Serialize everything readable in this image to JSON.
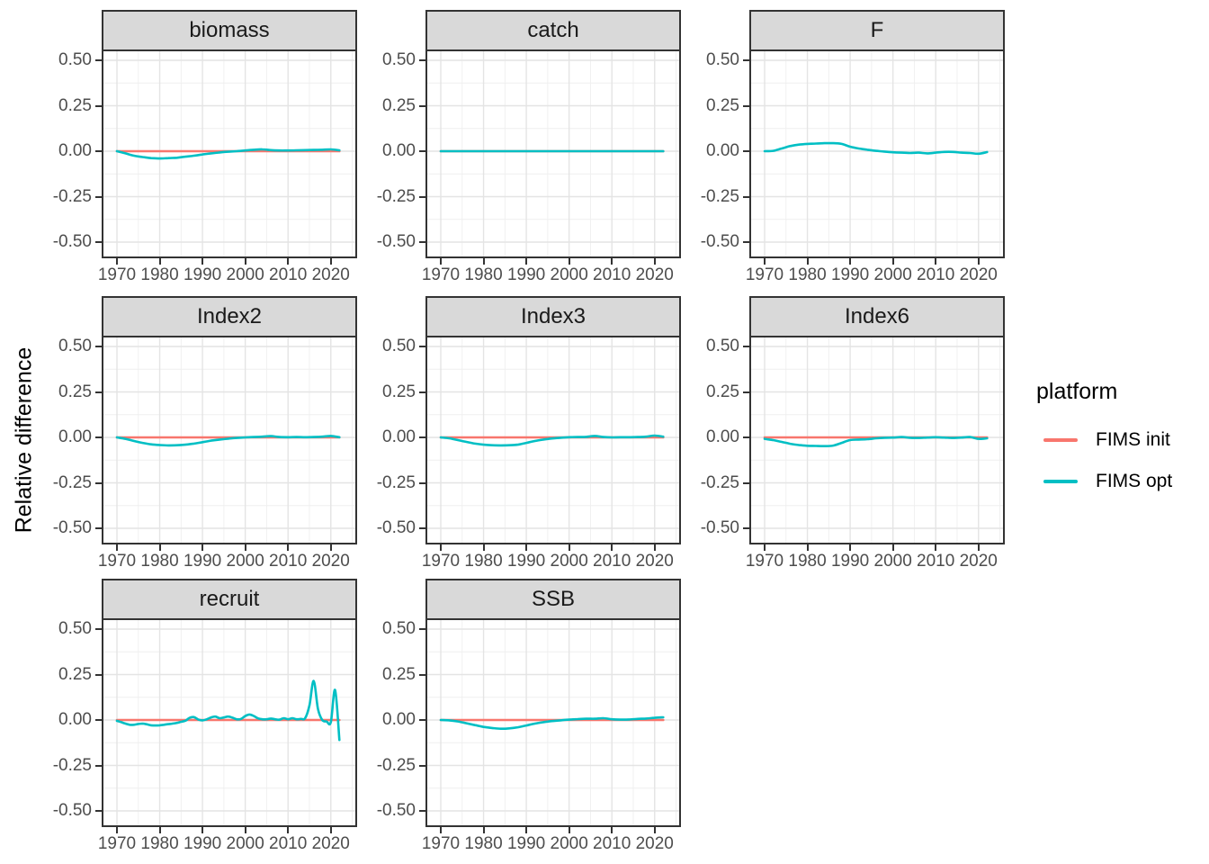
{
  "figure": {
    "y_axis_title": "Relative difference",
    "legend": {
      "title": "platform",
      "entries": [
        {
          "label": "FIMS init",
          "color": "#F8766D"
        },
        {
          "label": "FIMS opt",
          "color": "#00BFC4"
        }
      ]
    },
    "colors": {
      "init_line": "#F8766D",
      "opt_line": "#00BFC4",
      "strip_bg": "#D9D9D9",
      "panel_border": "#333333",
      "grid_major": "#E4E4E4",
      "grid_minor": "#EFEFEF",
      "tick_label": "#4D4D4D"
    }
  },
  "chart_data": {
    "type": "line",
    "title": "",
    "xlabel": "",
    "ylabel": "Relative difference",
    "grid": true,
    "legend_position": "right",
    "x_range": [
      1970,
      2022
    ],
    "ylim": [
      -0.55,
      0.565
    ],
    "x_tick_years": [
      1970,
      1980,
      1990,
      2000,
      2010,
      2020
    ],
    "x_tick_labels": [
      "1970",
      "1980",
      "1990",
      "2000",
      "2010",
      "2020"
    ],
    "x_minor_years": [
      1975,
      1985,
      1995,
      2005,
      2015,
      2025
    ],
    "y_tick_values": [
      0.5,
      0.25,
      0,
      -0.25,
      -0.5
    ],
    "y_tick_labels": [
      "0.50",
      "0.25",
      "0.00",
      "-0.25",
      "-0.50"
    ],
    "y_minor_values": [
      0.375,
      0.125,
      -0.125,
      -0.375
    ],
    "facets": [
      {
        "title": "biomass",
        "series": [
          {
            "name": "FIMS init",
            "color": "#F8766D",
            "x": [
              1970,
              2022
            ],
            "y": [
              0,
              0
            ]
          },
          {
            "name": "FIMS opt",
            "color": "#00BFC4",
            "x": [
              1970,
              1972,
              1974,
              1976,
              1978,
              1980,
              1982,
              1984,
              1986,
              1988,
              1990,
              1992,
              1994,
              1996,
              1998,
              2000,
              2002,
              2004,
              2006,
              2008,
              2010,
              2012,
              2014,
              2016,
              2018,
              2020,
              2022
            ],
            "y": [
              0.0,
              -0.012,
              -0.025,
              -0.032,
              -0.038,
              -0.04,
              -0.038,
              -0.036,
              -0.03,
              -0.025,
              -0.018,
              -0.012,
              -0.007,
              -0.003,
              0.0,
              0.004,
              0.008,
              0.01,
              0.006,
              0.004,
              0.004,
              0.005,
              0.006,
              0.007,
              0.008,
              0.01,
              0.005
            ]
          }
        ]
      },
      {
        "title": "catch",
        "series": [
          {
            "name": "FIMS init",
            "color": "#F8766D",
            "x": [
              1970,
              2022
            ],
            "y": [
              0,
              0
            ]
          },
          {
            "name": "FIMS opt",
            "color": "#00BFC4",
            "x": [
              1970,
              1972,
              1974,
              1976,
              1978,
              1980,
              1982,
              1984,
              1986,
              1988,
              1990,
              1992,
              1994,
              1996,
              1998,
              2000,
              2002,
              2004,
              2006,
              2008,
              2010,
              2012,
              2014,
              2016,
              2018,
              2020,
              2022
            ],
            "y": [
              0,
              0,
              0,
              0,
              0,
              0,
              0,
              0,
              0,
              0,
              0,
              0,
              0,
              0,
              0,
              0,
              0,
              0,
              0,
              0,
              0,
              0,
              0,
              0,
              0,
              0,
              0
            ]
          }
        ]
      },
      {
        "title": "F",
        "series": [
          {
            "name": "FIMS opt",
            "color": "#00BFC4",
            "x": [
              1970,
              1972,
              1974,
              1976,
              1978,
              1980,
              1982,
              1984,
              1986,
              1988,
              1990,
              1992,
              1994,
              1996,
              1998,
              2000,
              2002,
              2004,
              2006,
              2008,
              2010,
              2012,
              2014,
              2016,
              2018,
              2020,
              2022
            ],
            "y": [
              0.0,
              0.002,
              0.015,
              0.028,
              0.036,
              0.04,
              0.042,
              0.044,
              0.044,
              0.04,
              0.025,
              0.015,
              0.008,
              0.002,
              -0.002,
              -0.006,
              -0.008,
              -0.01,
              -0.008,
              -0.012,
              -0.008,
              -0.004,
              -0.004,
              -0.008,
              -0.01,
              -0.014,
              -0.005
            ]
          }
        ]
      },
      {
        "title": "Index2",
        "series": [
          {
            "name": "FIMS init",
            "color": "#F8766D",
            "x": [
              1970,
              2022
            ],
            "y": [
              0,
              0
            ]
          },
          {
            "name": "FIMS opt",
            "color": "#00BFC4",
            "x": [
              1970,
              1972,
              1974,
              1976,
              1978,
              1980,
              1982,
              1984,
              1986,
              1988,
              1990,
              1992,
              1994,
              1996,
              1998,
              2000,
              2002,
              2004,
              2006,
              2008,
              2010,
              2012,
              2014,
              2016,
              2018,
              2020,
              2022
            ],
            "y": [
              0.0,
              -0.008,
              -0.02,
              -0.03,
              -0.038,
              -0.042,
              -0.044,
              -0.043,
              -0.04,
              -0.034,
              -0.026,
              -0.018,
              -0.012,
              -0.007,
              -0.003,
              0.0,
              0.002,
              0.004,
              0.007,
              0.002,
              0.001,
              0.002,
              0.001,
              0.002,
              0.004,
              0.008,
              0.001
            ]
          }
        ]
      },
      {
        "title": "Index3",
        "series": [
          {
            "name": "FIMS init",
            "color": "#F8766D",
            "x": [
              1970,
              2022
            ],
            "y": [
              0,
              0
            ]
          },
          {
            "name": "FIMS opt",
            "color": "#00BFC4",
            "x": [
              1970,
              1972,
              1974,
              1976,
              1978,
              1980,
              1982,
              1984,
              1986,
              1988,
              1990,
              1992,
              1994,
              1996,
              1998,
              2000,
              2002,
              2004,
              2006,
              2008,
              2010,
              2012,
              2014,
              2016,
              2018,
              2020,
              2022
            ],
            "y": [
              0.0,
              -0.005,
              -0.015,
              -0.025,
              -0.034,
              -0.04,
              -0.043,
              -0.044,
              -0.043,
              -0.04,
              -0.03,
              -0.02,
              -0.012,
              -0.006,
              -0.002,
              0.001,
              0.002,
              0.003,
              0.008,
              0.002,
              0.0,
              0.001,
              0.001,
              0.002,
              0.004,
              0.01,
              0.004
            ]
          }
        ]
      },
      {
        "title": "Index6",
        "series": [
          {
            "name": "FIMS init",
            "color": "#F8766D",
            "x": [
              1970,
              2022
            ],
            "y": [
              0,
              0
            ]
          },
          {
            "name": "FIMS opt",
            "color": "#00BFC4",
            "x": [
              1970,
              1972,
              1974,
              1976,
              1978,
              1980,
              1982,
              1984,
              1986,
              1988,
              1990,
              1992,
              1994,
              1996,
              1998,
              2000,
              2002,
              2004,
              2006,
              2008,
              2010,
              2012,
              2014,
              2016,
              2018,
              2020,
              2022
            ],
            "y": [
              -0.008,
              -0.015,
              -0.025,
              -0.035,
              -0.042,
              -0.046,
              -0.047,
              -0.048,
              -0.045,
              -0.03,
              -0.015,
              -0.012,
              -0.01,
              -0.005,
              -0.002,
              -0.001,
              0.002,
              -0.002,
              -0.003,
              -0.001,
              0.001,
              -0.001,
              -0.003,
              -0.001,
              0.002,
              -0.008,
              -0.005
            ]
          }
        ]
      },
      {
        "title": "recruit",
        "series": [
          {
            "name": "FIMS init",
            "color": "#F8766D",
            "x": [
              1970,
              2022
            ],
            "y": [
              0,
              0
            ]
          },
          {
            "name": "FIMS opt",
            "color": "#00BFC4",
            "x": [
              1970,
              1971,
              1972,
              1973,
              1974,
              1975,
              1976,
              1977,
              1978,
              1979,
              1980,
              1981,
              1982,
              1983,
              1984,
              1985,
              1986,
              1987,
              1988,
              1989,
              1990,
              1991,
              1992,
              1993,
              1994,
              1995,
              1996,
              1997,
              1998,
              1999,
              2000,
              2001,
              2002,
              2003,
              2004,
              2005,
              2006,
              2007,
              2008,
              2009,
              2010,
              2011,
              2012,
              2013,
              2014,
              2015,
              2016,
              2017,
              2018,
              2019,
              2020,
              2021,
              2022
            ],
            "y": [
              -0.005,
              -0.012,
              -0.02,
              -0.026,
              -0.026,
              -0.022,
              -0.02,
              -0.024,
              -0.029,
              -0.03,
              -0.029,
              -0.026,
              -0.023,
              -0.02,
              -0.016,
              -0.01,
              -0.004,
              0.012,
              0.016,
              0.003,
              -0.002,
              0.004,
              0.014,
              0.019,
              0.01,
              0.014,
              0.019,
              0.013,
              0.004,
              0.006,
              0.022,
              0.03,
              0.022,
              0.009,
              0.004,
              0.004,
              0.008,
              0.004,
              0.002,
              0.01,
              0.004,
              0.01,
              0.004,
              0.006,
              0.01,
              0.08,
              0.215,
              0.06,
              0.0,
              -0.008,
              -0.012,
              0.165,
              -0.11
            ]
          }
        ]
      },
      {
        "title": "SSB",
        "series": [
          {
            "name": "FIMS init",
            "color": "#F8766D",
            "x": [
              1970,
              2022
            ],
            "y": [
              0,
              0
            ]
          },
          {
            "name": "FIMS opt",
            "color": "#00BFC4",
            "x": [
              1970,
              1972,
              1974,
              1976,
              1978,
              1980,
              1982,
              1984,
              1986,
              1988,
              1990,
              1992,
              1994,
              1996,
              1998,
              2000,
              2002,
              2004,
              2006,
              2008,
              2010,
              2012,
              2014,
              2016,
              2018,
              2020,
              2022
            ],
            "y": [
              0.0,
              -0.002,
              -0.008,
              -0.018,
              -0.028,
              -0.038,
              -0.044,
              -0.048,
              -0.046,
              -0.04,
              -0.03,
              -0.02,
              -0.012,
              -0.006,
              -0.002,
              0.002,
              0.005,
              0.007,
              0.007,
              0.01,
              0.004,
              0.002,
              0.003,
              0.006,
              0.008,
              0.012,
              0.015
            ]
          }
        ]
      }
    ]
  }
}
